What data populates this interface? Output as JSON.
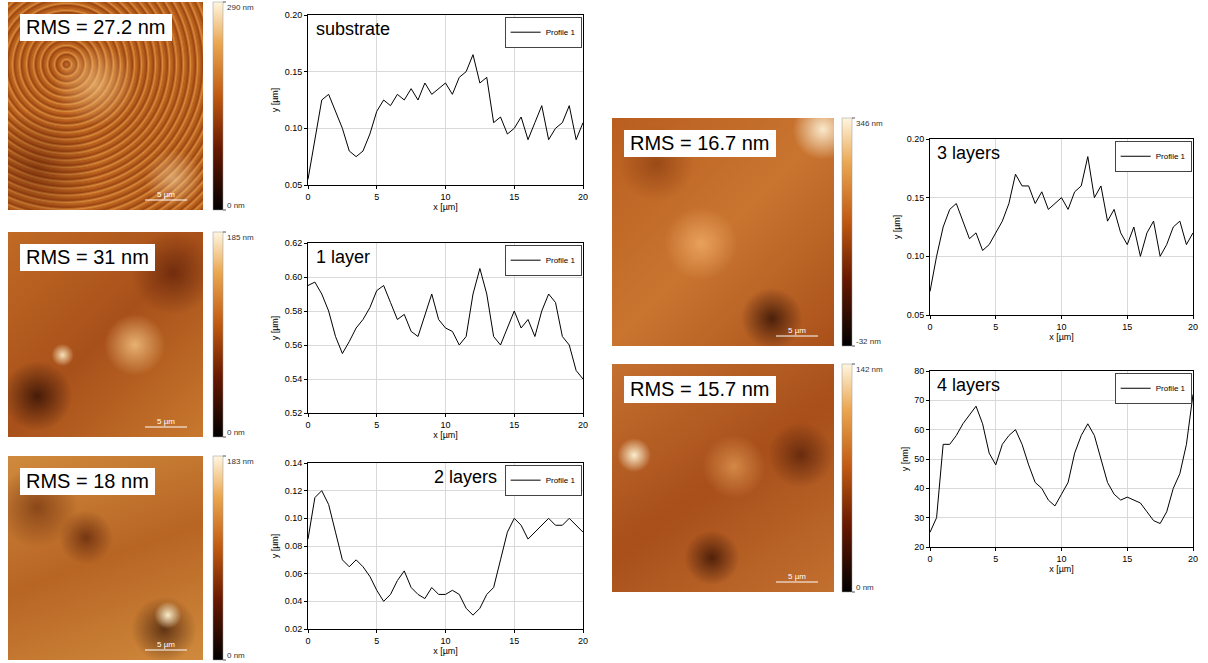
{
  "chart_data": [
    {
      "type": "line",
      "title": "substrate",
      "x_label": "x [µm]",
      "y_label": "y [µm]",
      "x": [
        0,
        0.5,
        1,
        1.5,
        2,
        2.5,
        3,
        3.5,
        4,
        4.5,
        5,
        5.5,
        6,
        6.5,
        7,
        7.5,
        8,
        8.5,
        9,
        9.5,
        10,
        10.5,
        11,
        11.5,
        12,
        12.5,
        13,
        13.5,
        14,
        14.5,
        15,
        15.5,
        16,
        16.5,
        17,
        17.5,
        18,
        18.5,
        19,
        19.5,
        20
      ],
      "series": [
        {
          "name": "Profile 1",
          "color": "#000000",
          "values": [
            0.055,
            0.09,
            0.125,
            0.13,
            0.115,
            0.1,
            0.08,
            0.075,
            0.08,
            0.095,
            0.115,
            0.125,
            0.12,
            0.13,
            0.125,
            0.135,
            0.125,
            0.14,
            0.13,
            0.135,
            0.14,
            0.13,
            0.145,
            0.15,
            0.165,
            0.14,
            0.145,
            0.105,
            0.11,
            0.095,
            0.1,
            0.11,
            0.09,
            0.105,
            0.12,
            0.09,
            0.1,
            0.105,
            0.12,
            0.09,
            0.105
          ]
        }
      ],
      "xlim": [
        0,
        20
      ],
      "xticks": [
        0,
        5,
        10,
        15,
        20
      ],
      "ylim": [
        0.05,
        0.2
      ],
      "yticks": [
        0.05,
        {
          "value": 0.1,
          "label": "0.10"
        },
        0.15,
        {
          "value": 0.2,
          "label": "0.20"
        }
      ],
      "grid": true,
      "legend": "top-right"
    },
    {
      "type": "line",
      "title": "1 layer",
      "x_label": "x [µm]",
      "y_label": "y [µm]",
      "x": [
        0,
        0.5,
        1,
        1.5,
        2,
        2.5,
        3,
        3.5,
        4,
        4.5,
        5,
        5.5,
        6,
        6.5,
        7,
        7.5,
        8,
        8.5,
        9,
        9.5,
        10,
        10.5,
        11,
        11.5,
        12,
        12.5,
        13,
        13.5,
        14,
        14.5,
        15,
        15.5,
        16,
        16.5,
        17,
        17.5,
        18,
        18.5,
        19,
        19.5,
        20
      ],
      "series": [
        {
          "name": "Profile 1",
          "color": "#000000",
          "values": [
            0.595,
            0.597,
            0.59,
            0.58,
            0.565,
            0.555,
            0.562,
            0.57,
            0.575,
            0.582,
            0.592,
            0.595,
            0.585,
            0.575,
            0.578,
            0.568,
            0.565,
            0.578,
            0.59,
            0.575,
            0.57,
            0.568,
            0.56,
            0.565,
            0.59,
            0.605,
            0.59,
            0.565,
            0.56,
            0.57,
            0.58,
            0.57,
            0.575,
            0.565,
            0.58,
            0.59,
            0.585,
            0.565,
            0.56,
            0.545,
            0.54
          ]
        }
      ],
      "xlim": [
        0,
        20
      ],
      "xticks": [
        0,
        5,
        10,
        15,
        20
      ],
      "ylim": [
        0.52,
        0.62
      ],
      "yticks": [
        0.52,
        0.54,
        0.56,
        0.58,
        {
          "value": 0.6,
          "label": "0.60"
        },
        0.62
      ],
      "grid": true,
      "legend": "top-right"
    },
    {
      "type": "line",
      "title": "2 layers",
      "x_label": "x [µm]",
      "y_label": "y [µm]",
      "x": [
        0,
        0.5,
        1,
        1.5,
        2,
        2.5,
        3,
        3.5,
        4,
        4.5,
        5,
        5.5,
        6,
        6.5,
        7,
        7.5,
        8,
        8.5,
        9,
        9.5,
        10,
        10.5,
        11,
        11.5,
        12,
        12.5,
        13,
        13.5,
        14,
        14.5,
        15,
        15.5,
        16,
        16.5,
        17,
        17.5,
        18,
        18.5,
        19,
        19.5,
        20
      ],
      "series": [
        {
          "name": "Profile 1",
          "color": "#000000",
          "values": [
            0.085,
            0.115,
            0.12,
            0.11,
            0.09,
            0.07,
            0.065,
            0.07,
            0.065,
            0.058,
            0.048,
            0.04,
            0.045,
            0.055,
            0.062,
            0.05,
            0.045,
            0.042,
            0.05,
            0.045,
            0.045,
            0.048,
            0.045,
            0.035,
            0.03,
            0.035,
            0.045,
            0.05,
            0.07,
            0.09,
            0.1,
            0.095,
            0.085,
            0.09,
            0.095,
            0.1,
            0.095,
            0.095,
            0.1,
            0.095,
            0.09
          ]
        }
      ],
      "xlim": [
        0,
        20
      ],
      "xticks": [
        0,
        5,
        10,
        15,
        20
      ],
      "ylim": [
        0.02,
        0.14
      ],
      "yticks": [
        0.02,
        0.04,
        0.06,
        0.08,
        {
          "value": 0.1,
          "label": "0.10"
        },
        0.12,
        0.14
      ],
      "grid": true,
      "legend": "top-right"
    },
    {
      "type": "line",
      "title": "3 layers",
      "x_label": "x [µm]",
      "y_label": "y [µm]",
      "x": [
        0,
        0.5,
        1,
        1.5,
        2,
        2.5,
        3,
        3.5,
        4,
        4.5,
        5,
        5.5,
        6,
        6.5,
        7,
        7.5,
        8,
        8.5,
        9,
        9.5,
        10,
        10.5,
        11,
        11.5,
        12,
        12.5,
        13,
        13.5,
        14,
        14.5,
        15,
        15.5,
        16,
        16.5,
        17,
        17.5,
        18,
        18.5,
        19,
        19.5,
        20
      ],
      "series": [
        {
          "name": "Profile 1",
          "color": "#000000",
          "values": [
            0.07,
            0.1,
            0.125,
            0.14,
            0.145,
            0.13,
            0.115,
            0.12,
            0.105,
            0.11,
            0.12,
            0.13,
            0.145,
            0.17,
            0.16,
            0.16,
            0.145,
            0.155,
            0.14,
            0.145,
            0.15,
            0.14,
            0.155,
            0.16,
            0.185,
            0.15,
            0.16,
            0.13,
            0.14,
            0.12,
            0.11,
            0.125,
            0.1,
            0.12,
            0.13,
            0.1,
            0.11,
            0.125,
            0.13,
            0.11,
            0.12
          ]
        }
      ],
      "xlim": [
        0,
        20
      ],
      "xticks": [
        0,
        5,
        10,
        15,
        20
      ],
      "ylim": [
        0.05,
        0.2
      ],
      "yticks": [
        0.05,
        {
          "value": 0.1,
          "label": "0.10"
        },
        0.15,
        {
          "value": 0.2,
          "label": "0.20"
        }
      ],
      "grid": true,
      "legend": "top-right"
    },
    {
      "type": "line",
      "title": "4 layers",
      "x_label": "x [µm]",
      "y_label": "y [nm]",
      "x": [
        0,
        0.5,
        1,
        1.5,
        2,
        2.5,
        3,
        3.5,
        4,
        4.5,
        5,
        5.5,
        6,
        6.5,
        7,
        7.5,
        8,
        8.5,
        9,
        9.5,
        10,
        10.5,
        11,
        11.5,
        12,
        12.5,
        13,
        13.5,
        14,
        14.5,
        15,
        15.5,
        16,
        16.5,
        17,
        17.5,
        18,
        18.5,
        19,
        19.5,
        20
      ],
      "series": [
        {
          "name": "Profile 1",
          "color": "#000000",
          "values": [
            25,
            30,
            55,
            55,
            58,
            62,
            65,
            68,
            62,
            52,
            48,
            55,
            58,
            60,
            55,
            48,
            42,
            40,
            36,
            34,
            38,
            42,
            52,
            58,
            62,
            58,
            50,
            42,
            38,
            36,
            37,
            36,
            35,
            32,
            29,
            28,
            32,
            40,
            45,
            55,
            72
          ]
        }
      ],
      "xlim": [
        0,
        20
      ],
      "xticks": [
        0,
        5,
        10,
        15,
        20
      ],
      "ylim": [
        20,
        80
      ],
      "yticks": [
        20,
        30,
        40,
        50,
        60,
        70,
        80
      ],
      "grid": true,
      "legend": "top-right"
    }
  ],
  "afm_images": [
    {
      "rms": "RMS = 27.2 nm",
      "colorbar": {
        "max": {
          "value": 290,
          "label": "290 nm"
        },
        "min": {
          "value": 0,
          "label": "0 nm"
        }
      },
      "scale_bar": "5 µm"
    },
    {
      "rms": "RMS = 31 nm",
      "colorbar": {
        "max": {
          "value": 185,
          "label": "185 nm"
        },
        "min": {
          "value": 0,
          "label": "0 nm"
        }
      },
      "scale_bar": "5 µm"
    },
    {
      "rms": "RMS = 18 nm",
      "colorbar": {
        "max": {
          "value": 183,
          "label": "183 nm"
        },
        "min": {
          "value": 0,
          "label": "0 nm"
        }
      },
      "scale_bar": "5 µm"
    },
    {
      "rms": "RMS = 16.7 nm",
      "colorbar": {
        "max": {
          "value": 346,
          "label": "346 nm"
        },
        "min": {
          "value": -32,
          "label": "-32 nm"
        }
      },
      "scale_bar": "5 µm"
    },
    {
      "rms": "RMS = 15.7 nm",
      "colorbar": {
        "max": {
          "value": 142,
          "label": "142 nm"
        },
        "min": {
          "value": 0,
          "label": "0 nm"
        }
      },
      "scale_bar": "5 µm"
    }
  ]
}
